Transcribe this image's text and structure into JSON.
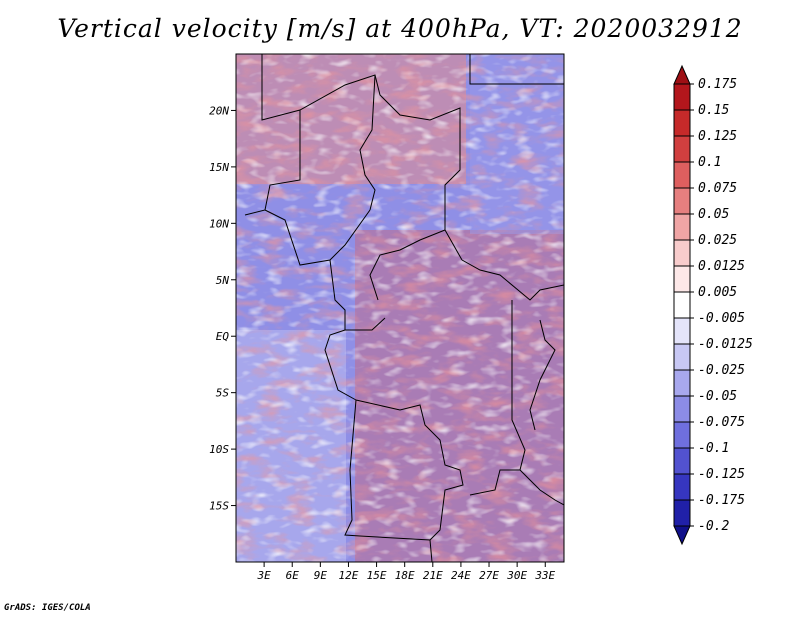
{
  "title": "Vertical velocity [m/s] at 400hPa, VT: 2020032912",
  "credit": "GrADS: IGES/COLA",
  "map": {
    "lon_range": [
      0,
      35
    ],
    "lat_range": [
      -20,
      25
    ],
    "lon_ticks": [
      "3E",
      "6E",
      "9E",
      "12E",
      "15E",
      "18E",
      "21E",
      "24E",
      "27E",
      "30E",
      "33E"
    ],
    "lat_ticks": [
      "20N",
      "15N",
      "10N",
      "5N",
      "EQ",
      "5S",
      "10S",
      "15S"
    ],
    "lon_tick_values": [
      3,
      6,
      9,
      12,
      15,
      18,
      21,
      24,
      27,
      30,
      33
    ],
    "lat_tick_values": [
      20,
      15,
      10,
      5,
      0,
      -5,
      -10,
      -15
    ]
  },
  "colorbar": {
    "labels": [
      "0.175",
      "0.15",
      "0.125",
      "0.1",
      "0.075",
      "0.05",
      "0.025",
      "0.0125",
      "0.005",
      "-0.005",
      "-0.0125",
      "-0.025",
      "-0.05",
      "-0.075",
      "-0.1",
      "-0.125",
      "-0.175",
      "-0.2"
    ],
    "colors": [
      "#9e0f14",
      "#b3161c",
      "#c62a2a",
      "#d13f3f",
      "#de5f5f",
      "#e67f7f",
      "#f0a5a5",
      "#f8cccc",
      "#fde8e8",
      "#ffffff",
      "#e4e4fa",
      "#c8c8f4",
      "#a8a8ee",
      "#8c8ce6",
      "#6f6fde",
      "#5252d0",
      "#3636c0",
      "#2020a8",
      "#10108a"
    ]
  }
}
